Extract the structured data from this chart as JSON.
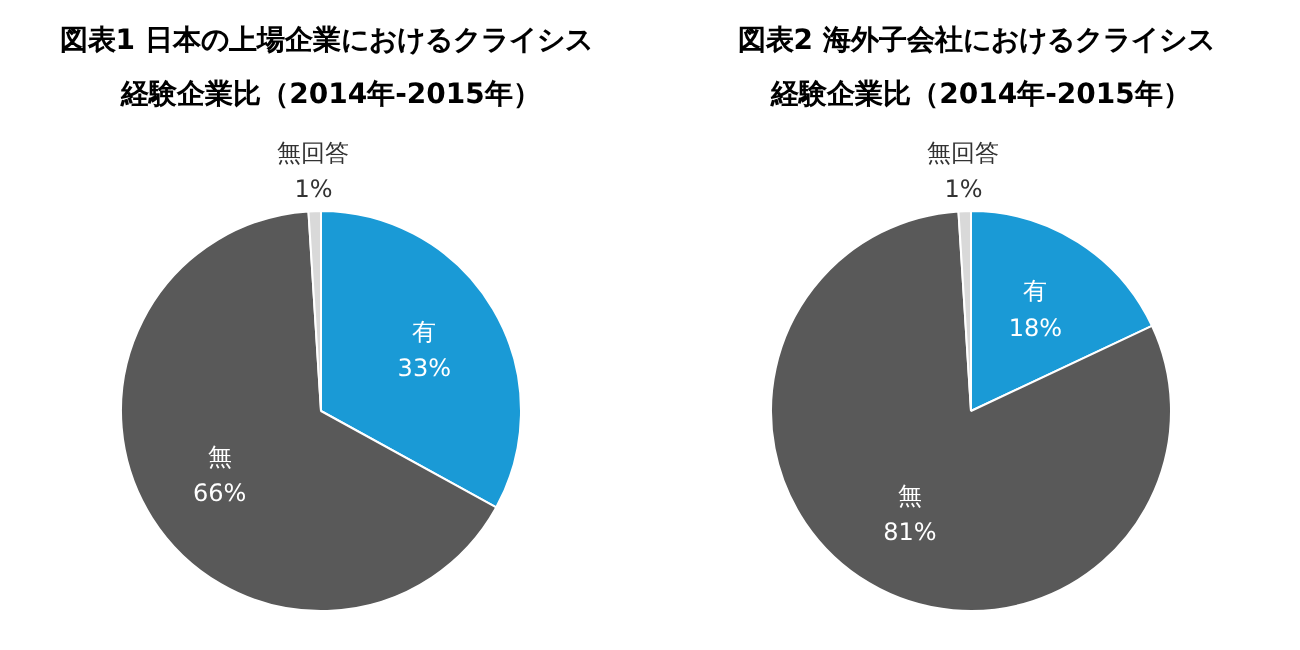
{
  "chart_data": [
    {
      "type": "pie",
      "title": "図表1  日本の上場企業におけるクライシス",
      "subtitle": "経験企業比（2014年-2015年）",
      "categories": [
        "有",
        "無",
        "無回答"
      ],
      "values": [
        33,
        66,
        1
      ],
      "value_labels": [
        "33%",
        "66%",
        "1%"
      ],
      "colors": [
        "#1a9ad6",
        "#595959",
        "#d9d9d9"
      ],
      "legend": false
    },
    {
      "type": "pie",
      "title": "図表2  海外子会社におけるクライシス",
      "subtitle": "経験企業比（2014年-2015年）",
      "categories": [
        "有",
        "無",
        "無回答"
      ],
      "values": [
        18,
        81,
        1
      ],
      "value_labels": [
        "18%",
        "81%",
        "1%"
      ],
      "colors": [
        "#1a9ad6",
        "#595959",
        "#d9d9d9"
      ],
      "legend": false
    }
  ]
}
